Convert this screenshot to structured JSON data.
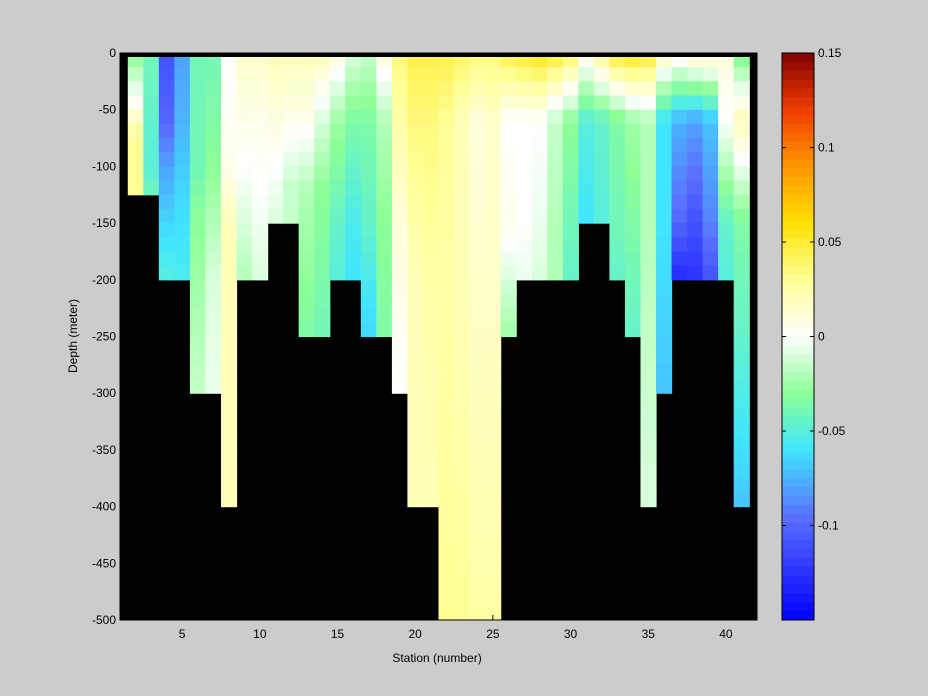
{
  "chart_data": {
    "type": "heatmap",
    "title": "",
    "xlabel": "Station (number)",
    "ylabel": "Depth (meter)",
    "xlim": [
      1,
      42
    ],
    "ylim": [
      -500,
      0
    ],
    "x_ticks": [
      5,
      10,
      15,
      20,
      25,
      30,
      35,
      40
    ],
    "y_ticks": [
      0,
      -50,
      -100,
      -150,
      -200,
      -250,
      -300,
      -350,
      -400,
      -450,
      -500
    ],
    "colorbar": {
      "clim": [
        -0.15,
        0.15
      ],
      "ticks": [
        0.15,
        0.1,
        0.05,
        0,
        -0.05,
        -0.1
      ],
      "tick_labels": [
        "0.15",
        "0.1",
        "0.05",
        "0",
        "-0.05",
        "-0.1"
      ],
      "colormap": "jet-white-center"
    },
    "land_color": "#000000",
    "stations": [
      2,
      3,
      4,
      5,
      6,
      7,
      8,
      9,
      10,
      11,
      12,
      13,
      14,
      15,
      16,
      17,
      18,
      19,
      20,
      21,
      22,
      23,
      24,
      25,
      26,
      27,
      28,
      29,
      30,
      31,
      32,
      33,
      34,
      35,
      36,
      37,
      38,
      39,
      40,
      41
    ],
    "depth_bottoms": [
      -125,
      -125,
      -200,
      -200,
      -300,
      -300,
      -400,
      -200,
      -200,
      -150,
      -150,
      -250,
      -250,
      -200,
      -200,
      -250,
      -250,
      -300,
      -400,
      -400,
      -500,
      -500,
      -500,
      -500,
      -250,
      -200,
      -200,
      -200,
      -200,
      -150,
      -150,
      -200,
      -250,
      -400,
      -300,
      -200,
      -200,
      -200,
      -200,
      -400
    ],
    "value_profiles": [
      [
        [
          0,
          -0.03
        ],
        [
          -40,
          0.0
        ],
        [
          -75,
          0.03
        ],
        [
          -125,
          0.03
        ]
      ],
      [
        [
          0,
          -0.04
        ],
        [
          -100,
          -0.05
        ],
        [
          -125,
          -0.04
        ]
      ],
      [
        [
          0,
          -0.11
        ],
        [
          -60,
          -0.1
        ],
        [
          -100,
          -0.08
        ],
        [
          -150,
          -0.065
        ],
        [
          -200,
          -0.05
        ]
      ],
      [
        [
          0,
          -0.08
        ],
        [
          -60,
          -0.075
        ],
        [
          -120,
          -0.065
        ],
        [
          -200,
          -0.055
        ]
      ],
      [
        [
          0,
          -0.04
        ],
        [
          -100,
          -0.04
        ],
        [
          -150,
          -0.03
        ],
        [
          -300,
          -0.015
        ]
      ],
      [
        [
          0,
          -0.04
        ],
        [
          -100,
          -0.03
        ],
        [
          -200,
          -0.01
        ],
        [
          -300,
          -0.005
        ]
      ],
      [
        [
          0,
          0.0
        ],
        [
          -100,
          0.005
        ],
        [
          -150,
          0.02
        ],
        [
          -400,
          0.02
        ]
      ],
      [
        [
          0,
          0.015
        ],
        [
          -100,
          0.0
        ],
        [
          -200,
          -0.02
        ]
      ],
      [
        [
          0,
          0.015
        ],
        [
          -60,
          0.005
        ],
        [
          -120,
          0.0
        ],
        [
          -200,
          -0.01
        ]
      ],
      [
        [
          0,
          0.02
        ],
        [
          -100,
          0.0
        ],
        [
          -150,
          -0.01
        ]
      ],
      [
        [
          0,
          0.02
        ],
        [
          -60,
          0.005
        ],
        [
          -120,
          -0.015
        ],
        [
          -150,
          -0.015
        ]
      ],
      [
        [
          0,
          0.02
        ],
        [
          -60,
          0.005
        ],
        [
          -120,
          -0.02
        ],
        [
          -250,
          -0.035
        ]
      ],
      [
        [
          0,
          0.02
        ],
        [
          -60,
          -0.01
        ],
        [
          -120,
          -0.03
        ],
        [
          -250,
          -0.04
        ]
      ],
      [
        [
          0,
          0.01
        ],
        [
          -60,
          -0.025
        ],
        [
          -150,
          -0.045
        ],
        [
          -200,
          -0.05
        ]
      ],
      [
        [
          0,
          -0.01
        ],
        [
          -60,
          -0.035
        ],
        [
          -150,
          -0.055
        ],
        [
          -200,
          -0.06
        ]
      ],
      [
        [
          0,
          -0.015
        ],
        [
          -60,
          -0.035
        ],
        [
          -150,
          -0.045
        ],
        [
          -250,
          -0.065
        ]
      ],
      [
        [
          0,
          0.01
        ],
        [
          -60,
          -0.02
        ],
        [
          -150,
          -0.03
        ],
        [
          -250,
          -0.035
        ]
      ],
      [
        [
          0,
          0.035
        ],
        [
          -60,
          0.025
        ],
        [
          -150,
          0.01
        ],
        [
          -300,
          0.0
        ]
      ],
      [
        [
          0,
          0.045
        ],
        [
          -60,
          0.035
        ],
        [
          -200,
          0.02
        ],
        [
          -400,
          0.02
        ]
      ],
      [
        [
          0,
          0.045
        ],
        [
          -60,
          0.035
        ],
        [
          -200,
          0.025
        ],
        [
          -400,
          0.02
        ]
      ],
      [
        [
          0,
          0.045
        ],
        [
          -60,
          0.03
        ],
        [
          -200,
          0.025
        ],
        [
          -500,
          0.03
        ]
      ],
      [
        [
          0,
          0.04
        ],
        [
          -60,
          0.02
        ],
        [
          -200,
          0.02
        ],
        [
          -500,
          0.03
        ]
      ],
      [
        [
          0,
          0.035
        ],
        [
          -60,
          0.01
        ],
        [
          -200,
          0.015
        ],
        [
          -500,
          0.025
        ]
      ],
      [
        [
          0,
          0.035
        ],
        [
          -60,
          0.015
        ],
        [
          -200,
          0.015
        ],
        [
          -500,
          0.025
        ]
      ],
      [
        [
          0,
          0.045
        ],
        [
          -60,
          0.0
        ],
        [
          -150,
          0.005
        ],
        [
          -250,
          -0.025
        ]
      ],
      [
        [
          0,
          0.05
        ],
        [
          -60,
          0.0
        ],
        [
          -150,
          0.0
        ],
        [
          -200,
          -0.005
        ]
      ],
      [
        [
          0,
          0.055
        ],
        [
          -60,
          0.0
        ],
        [
          -150,
          -0.005
        ],
        [
          -200,
          -0.01
        ]
      ],
      [
        [
          0,
          0.05
        ],
        [
          -60,
          -0.015
        ],
        [
          -150,
          -0.02
        ],
        [
          -200,
          -0.02
        ]
      ],
      [
        [
          0,
          0.04
        ],
        [
          -60,
          -0.03
        ],
        [
          -150,
          -0.04
        ],
        [
          -200,
          -0.045
        ]
      ],
      [
        [
          0,
          0.01
        ],
        [
          -60,
          -0.05
        ],
        [
          -150,
          -0.06
        ],
        [
          -150,
          -0.06
        ]
      ],
      [
        [
          0,
          0.03
        ],
        [
          -60,
          -0.045
        ],
        [
          -150,
          -0.05
        ],
        [
          -150,
          -0.05
        ]
      ],
      [
        [
          0,
          0.05
        ],
        [
          -60,
          -0.035
        ],
        [
          -150,
          -0.04
        ],
        [
          -200,
          -0.045
        ]
      ],
      [
        [
          0,
          0.055
        ],
        [
          -60,
          -0.025
        ],
        [
          -150,
          -0.035
        ],
        [
          -250,
          -0.045
        ]
      ],
      [
        [
          0,
          0.05
        ],
        [
          -60,
          -0.02
        ],
        [
          -150,
          -0.02
        ],
        [
          -400,
          -0.01
        ]
      ],
      [
        [
          0,
          0.02
        ],
        [
          -60,
          -0.06
        ],
        [
          -150,
          -0.06
        ],
        [
          -300,
          -0.07
        ]
      ],
      [
        [
          0,
          0.01
        ],
        [
          -60,
          -0.075
        ],
        [
          -150,
          -0.1
        ],
        [
          -200,
          -0.13
        ]
      ],
      [
        [
          0,
          0.02
        ],
        [
          -60,
          -0.08
        ],
        [
          -150,
          -0.11
        ],
        [
          -200,
          -0.125
        ]
      ],
      [
        [
          0,
          0.02
        ],
        [
          -60,
          -0.07
        ],
        [
          -150,
          -0.09
        ],
        [
          -200,
          -0.11
        ]
      ],
      [
        [
          0,
          0.01
        ],
        [
          -60,
          0.0
        ],
        [
          -150,
          -0.045
        ],
        [
          -200,
          -0.05
        ]
      ],
      [
        [
          0,
          -0.035
        ],
        [
          -60,
          0.02
        ],
        [
          -150,
          -0.035
        ],
        [
          -250,
          -0.045
        ],
        [
          -400,
          -0.07
        ]
      ]
    ]
  }
}
